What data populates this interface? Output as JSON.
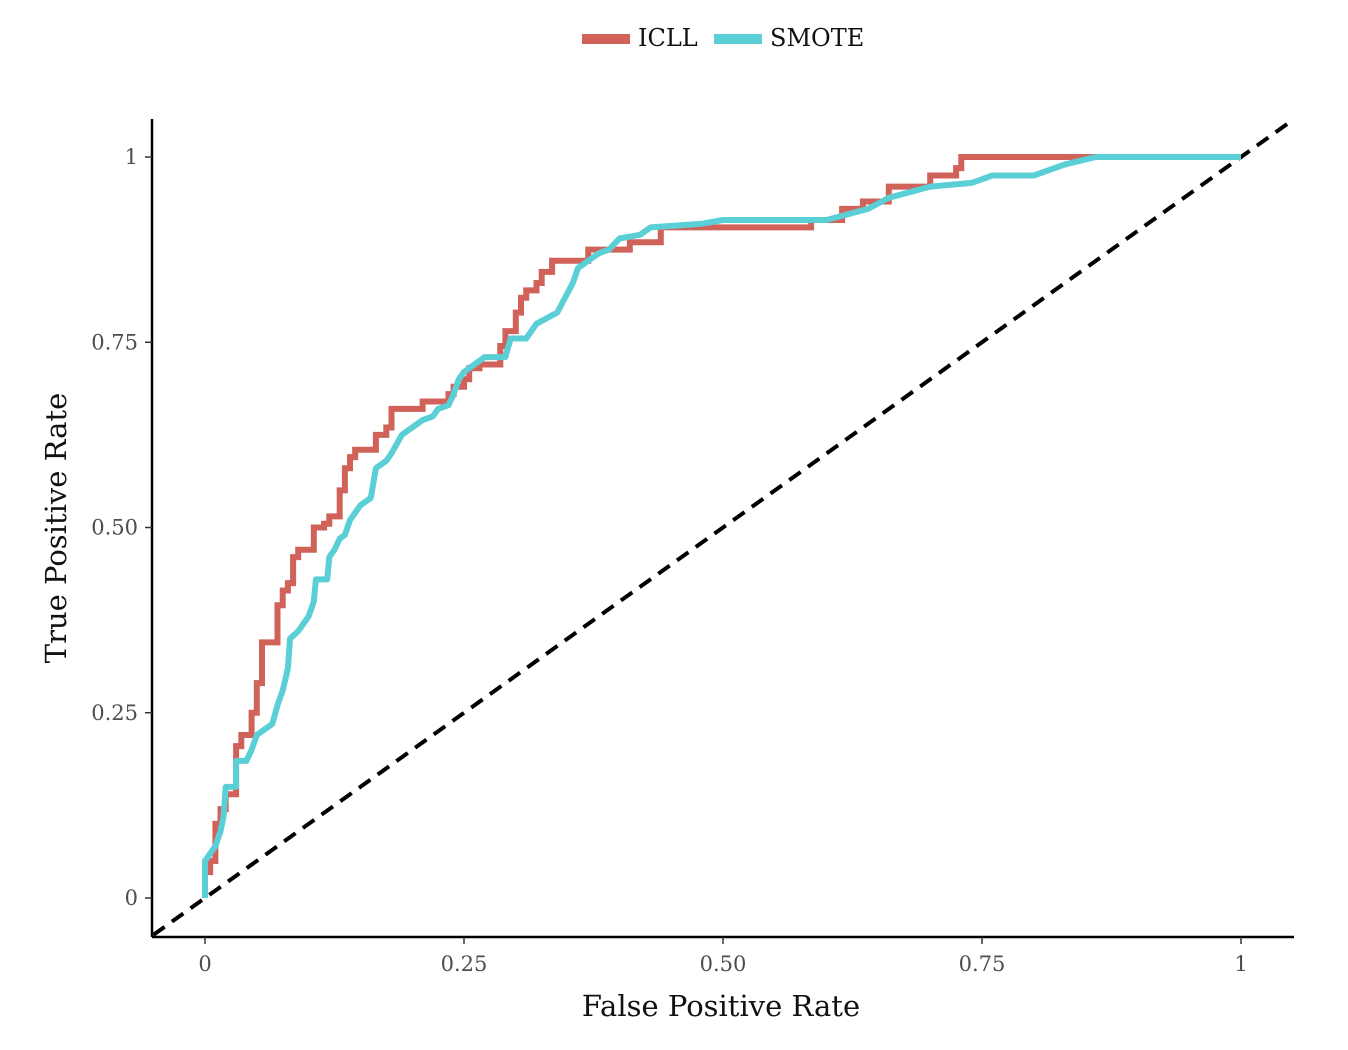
{
  "chart_data": {
    "type": "line",
    "title": "",
    "xlabel": "False Positive Rate",
    "ylabel": "True Positive Rate",
    "xlim": [
      -0.05,
      1.05
    ],
    "ylim": [
      -0.05,
      1.05
    ],
    "grid": false,
    "legend_position": "top-center",
    "x_ticks": [
      {
        "value": 0,
        "label": "0"
      },
      {
        "value": 0.25,
        "label": "0.25"
      },
      {
        "value": 0.5,
        "label": "0.50"
      },
      {
        "value": 0.75,
        "label": "0.75"
      },
      {
        "value": 1,
        "label": "1"
      }
    ],
    "y_ticks": [
      {
        "value": 0,
        "label": "0"
      },
      {
        "value": 0.25,
        "label": "0.25"
      },
      {
        "value": 0.5,
        "label": "0.50"
      },
      {
        "value": 0.75,
        "label": "0.75"
      },
      {
        "value": 1,
        "label": "1"
      }
    ],
    "reference_line": {
      "x": [
        -0.05,
        1.05
      ],
      "y": [
        -0.05,
        1.05
      ],
      "style": "dashed",
      "color": "#000000"
    },
    "series": [
      {
        "name": "ICLL",
        "color": "#d1625a",
        "step": true,
        "points": [
          [
            0.0,
            0.0
          ],
          [
            0.0,
            0.035
          ],
          [
            0.005,
            0.035
          ],
          [
            0.005,
            0.05
          ],
          [
            0.01,
            0.05
          ],
          [
            0.01,
            0.1
          ],
          [
            0.015,
            0.1
          ],
          [
            0.015,
            0.12
          ],
          [
            0.02,
            0.12
          ],
          [
            0.02,
            0.14
          ],
          [
            0.03,
            0.14
          ],
          [
            0.03,
            0.205
          ],
          [
            0.035,
            0.205
          ],
          [
            0.035,
            0.22
          ],
          [
            0.045,
            0.22
          ],
          [
            0.045,
            0.25
          ],
          [
            0.05,
            0.25
          ],
          [
            0.05,
            0.29
          ],
          [
            0.055,
            0.29
          ],
          [
            0.055,
            0.345
          ],
          [
            0.07,
            0.345
          ],
          [
            0.07,
            0.395
          ],
          [
            0.075,
            0.395
          ],
          [
            0.075,
            0.415
          ],
          [
            0.08,
            0.415
          ],
          [
            0.08,
            0.425
          ],
          [
            0.085,
            0.425
          ],
          [
            0.085,
            0.46
          ],
          [
            0.09,
            0.46
          ],
          [
            0.09,
            0.47
          ],
          [
            0.105,
            0.47
          ],
          [
            0.105,
            0.5
          ],
          [
            0.115,
            0.5
          ],
          [
            0.115,
            0.505
          ],
          [
            0.12,
            0.505
          ],
          [
            0.12,
            0.515
          ],
          [
            0.13,
            0.515
          ],
          [
            0.13,
            0.55
          ],
          [
            0.135,
            0.55
          ],
          [
            0.135,
            0.58
          ],
          [
            0.14,
            0.58
          ],
          [
            0.14,
            0.595
          ],
          [
            0.145,
            0.595
          ],
          [
            0.145,
            0.605
          ],
          [
            0.165,
            0.605
          ],
          [
            0.165,
            0.625
          ],
          [
            0.175,
            0.625
          ],
          [
            0.175,
            0.635
          ],
          [
            0.18,
            0.635
          ],
          [
            0.18,
            0.66
          ],
          [
            0.21,
            0.66
          ],
          [
            0.21,
            0.67
          ],
          [
            0.235,
            0.67
          ],
          [
            0.235,
            0.68
          ],
          [
            0.24,
            0.68
          ],
          [
            0.24,
            0.69
          ],
          [
            0.25,
            0.69
          ],
          [
            0.25,
            0.7
          ],
          [
            0.255,
            0.7
          ],
          [
            0.255,
            0.715
          ],
          [
            0.265,
            0.715
          ],
          [
            0.265,
            0.72
          ],
          [
            0.285,
            0.72
          ],
          [
            0.285,
            0.745
          ],
          [
            0.29,
            0.745
          ],
          [
            0.29,
            0.765
          ],
          [
            0.3,
            0.765
          ],
          [
            0.3,
            0.79
          ],
          [
            0.305,
            0.79
          ],
          [
            0.305,
            0.81
          ],
          [
            0.31,
            0.81
          ],
          [
            0.31,
            0.82
          ],
          [
            0.32,
            0.82
          ],
          [
            0.32,
            0.83
          ],
          [
            0.325,
            0.83
          ],
          [
            0.325,
            0.845
          ],
          [
            0.335,
            0.845
          ],
          [
            0.335,
            0.86
          ],
          [
            0.37,
            0.86
          ],
          [
            0.37,
            0.875
          ],
          [
            0.41,
            0.875
          ],
          [
            0.41,
            0.885
          ],
          [
            0.44,
            0.885
          ],
          [
            0.44,
            0.905
          ],
          [
            0.585,
            0.905
          ],
          [
            0.585,
            0.915
          ],
          [
            0.615,
            0.915
          ],
          [
            0.615,
            0.93
          ],
          [
            0.635,
            0.93
          ],
          [
            0.635,
            0.94
          ],
          [
            0.66,
            0.94
          ],
          [
            0.66,
            0.96
          ],
          [
            0.7,
            0.96
          ],
          [
            0.7,
            0.975
          ],
          [
            0.725,
            0.975
          ],
          [
            0.725,
            0.985
          ],
          [
            0.73,
            0.985
          ],
          [
            0.73,
            1.0
          ],
          [
            1.0,
            1.0
          ]
        ]
      },
      {
        "name": "SMOTE",
        "color": "#5bcfd6",
        "step": false,
        "points": [
          [
            0.0,
            0.0
          ],
          [
            0.0,
            0.05
          ],
          [
            0.005,
            0.06
          ],
          [
            0.01,
            0.07
          ],
          [
            0.015,
            0.09
          ],
          [
            0.018,
            0.11
          ],
          [
            0.02,
            0.15
          ],
          [
            0.03,
            0.15
          ],
          [
            0.03,
            0.185
          ],
          [
            0.04,
            0.185
          ],
          [
            0.045,
            0.2
          ],
          [
            0.05,
            0.22
          ],
          [
            0.06,
            0.23
          ],
          [
            0.065,
            0.235
          ],
          [
            0.07,
            0.26
          ],
          [
            0.075,
            0.28
          ],
          [
            0.08,
            0.31
          ],
          [
            0.082,
            0.35
          ],
          [
            0.09,
            0.36
          ],
          [
            0.1,
            0.38
          ],
          [
            0.105,
            0.4
          ],
          [
            0.107,
            0.43
          ],
          [
            0.118,
            0.43
          ],
          [
            0.12,
            0.46
          ],
          [
            0.125,
            0.47
          ],
          [
            0.13,
            0.485
          ],
          [
            0.135,
            0.49
          ],
          [
            0.14,
            0.51
          ],
          [
            0.145,
            0.52
          ],
          [
            0.15,
            0.53
          ],
          [
            0.16,
            0.54
          ],
          [
            0.165,
            0.58
          ],
          [
            0.175,
            0.59
          ],
          [
            0.18,
            0.6
          ],
          [
            0.19,
            0.625
          ],
          [
            0.21,
            0.645
          ],
          [
            0.22,
            0.65
          ],
          [
            0.225,
            0.66
          ],
          [
            0.235,
            0.665
          ],
          [
            0.24,
            0.68
          ],
          [
            0.245,
            0.7
          ],
          [
            0.25,
            0.71
          ],
          [
            0.26,
            0.72
          ],
          [
            0.27,
            0.73
          ],
          [
            0.29,
            0.73
          ],
          [
            0.295,
            0.755
          ],
          [
            0.31,
            0.755
          ],
          [
            0.32,
            0.775
          ],
          [
            0.34,
            0.79
          ],
          [
            0.355,
            0.83
          ],
          [
            0.36,
            0.85
          ],
          [
            0.37,
            0.86
          ],
          [
            0.38,
            0.87
          ],
          [
            0.39,
            0.875
          ],
          [
            0.4,
            0.89
          ],
          [
            0.42,
            0.895
          ],
          [
            0.43,
            0.905
          ],
          [
            0.48,
            0.91
          ],
          [
            0.5,
            0.915
          ],
          [
            0.55,
            0.915
          ],
          [
            0.6,
            0.915
          ],
          [
            0.64,
            0.93
          ],
          [
            0.66,
            0.945
          ],
          [
            0.7,
            0.96
          ],
          [
            0.74,
            0.965
          ],
          [
            0.76,
            0.975
          ],
          [
            0.8,
            0.975
          ],
          [
            0.83,
            0.99
          ],
          [
            0.86,
            1.0
          ],
          [
            0.9,
            1.0
          ],
          [
            1.0,
            1.0
          ]
        ]
      }
    ]
  }
}
